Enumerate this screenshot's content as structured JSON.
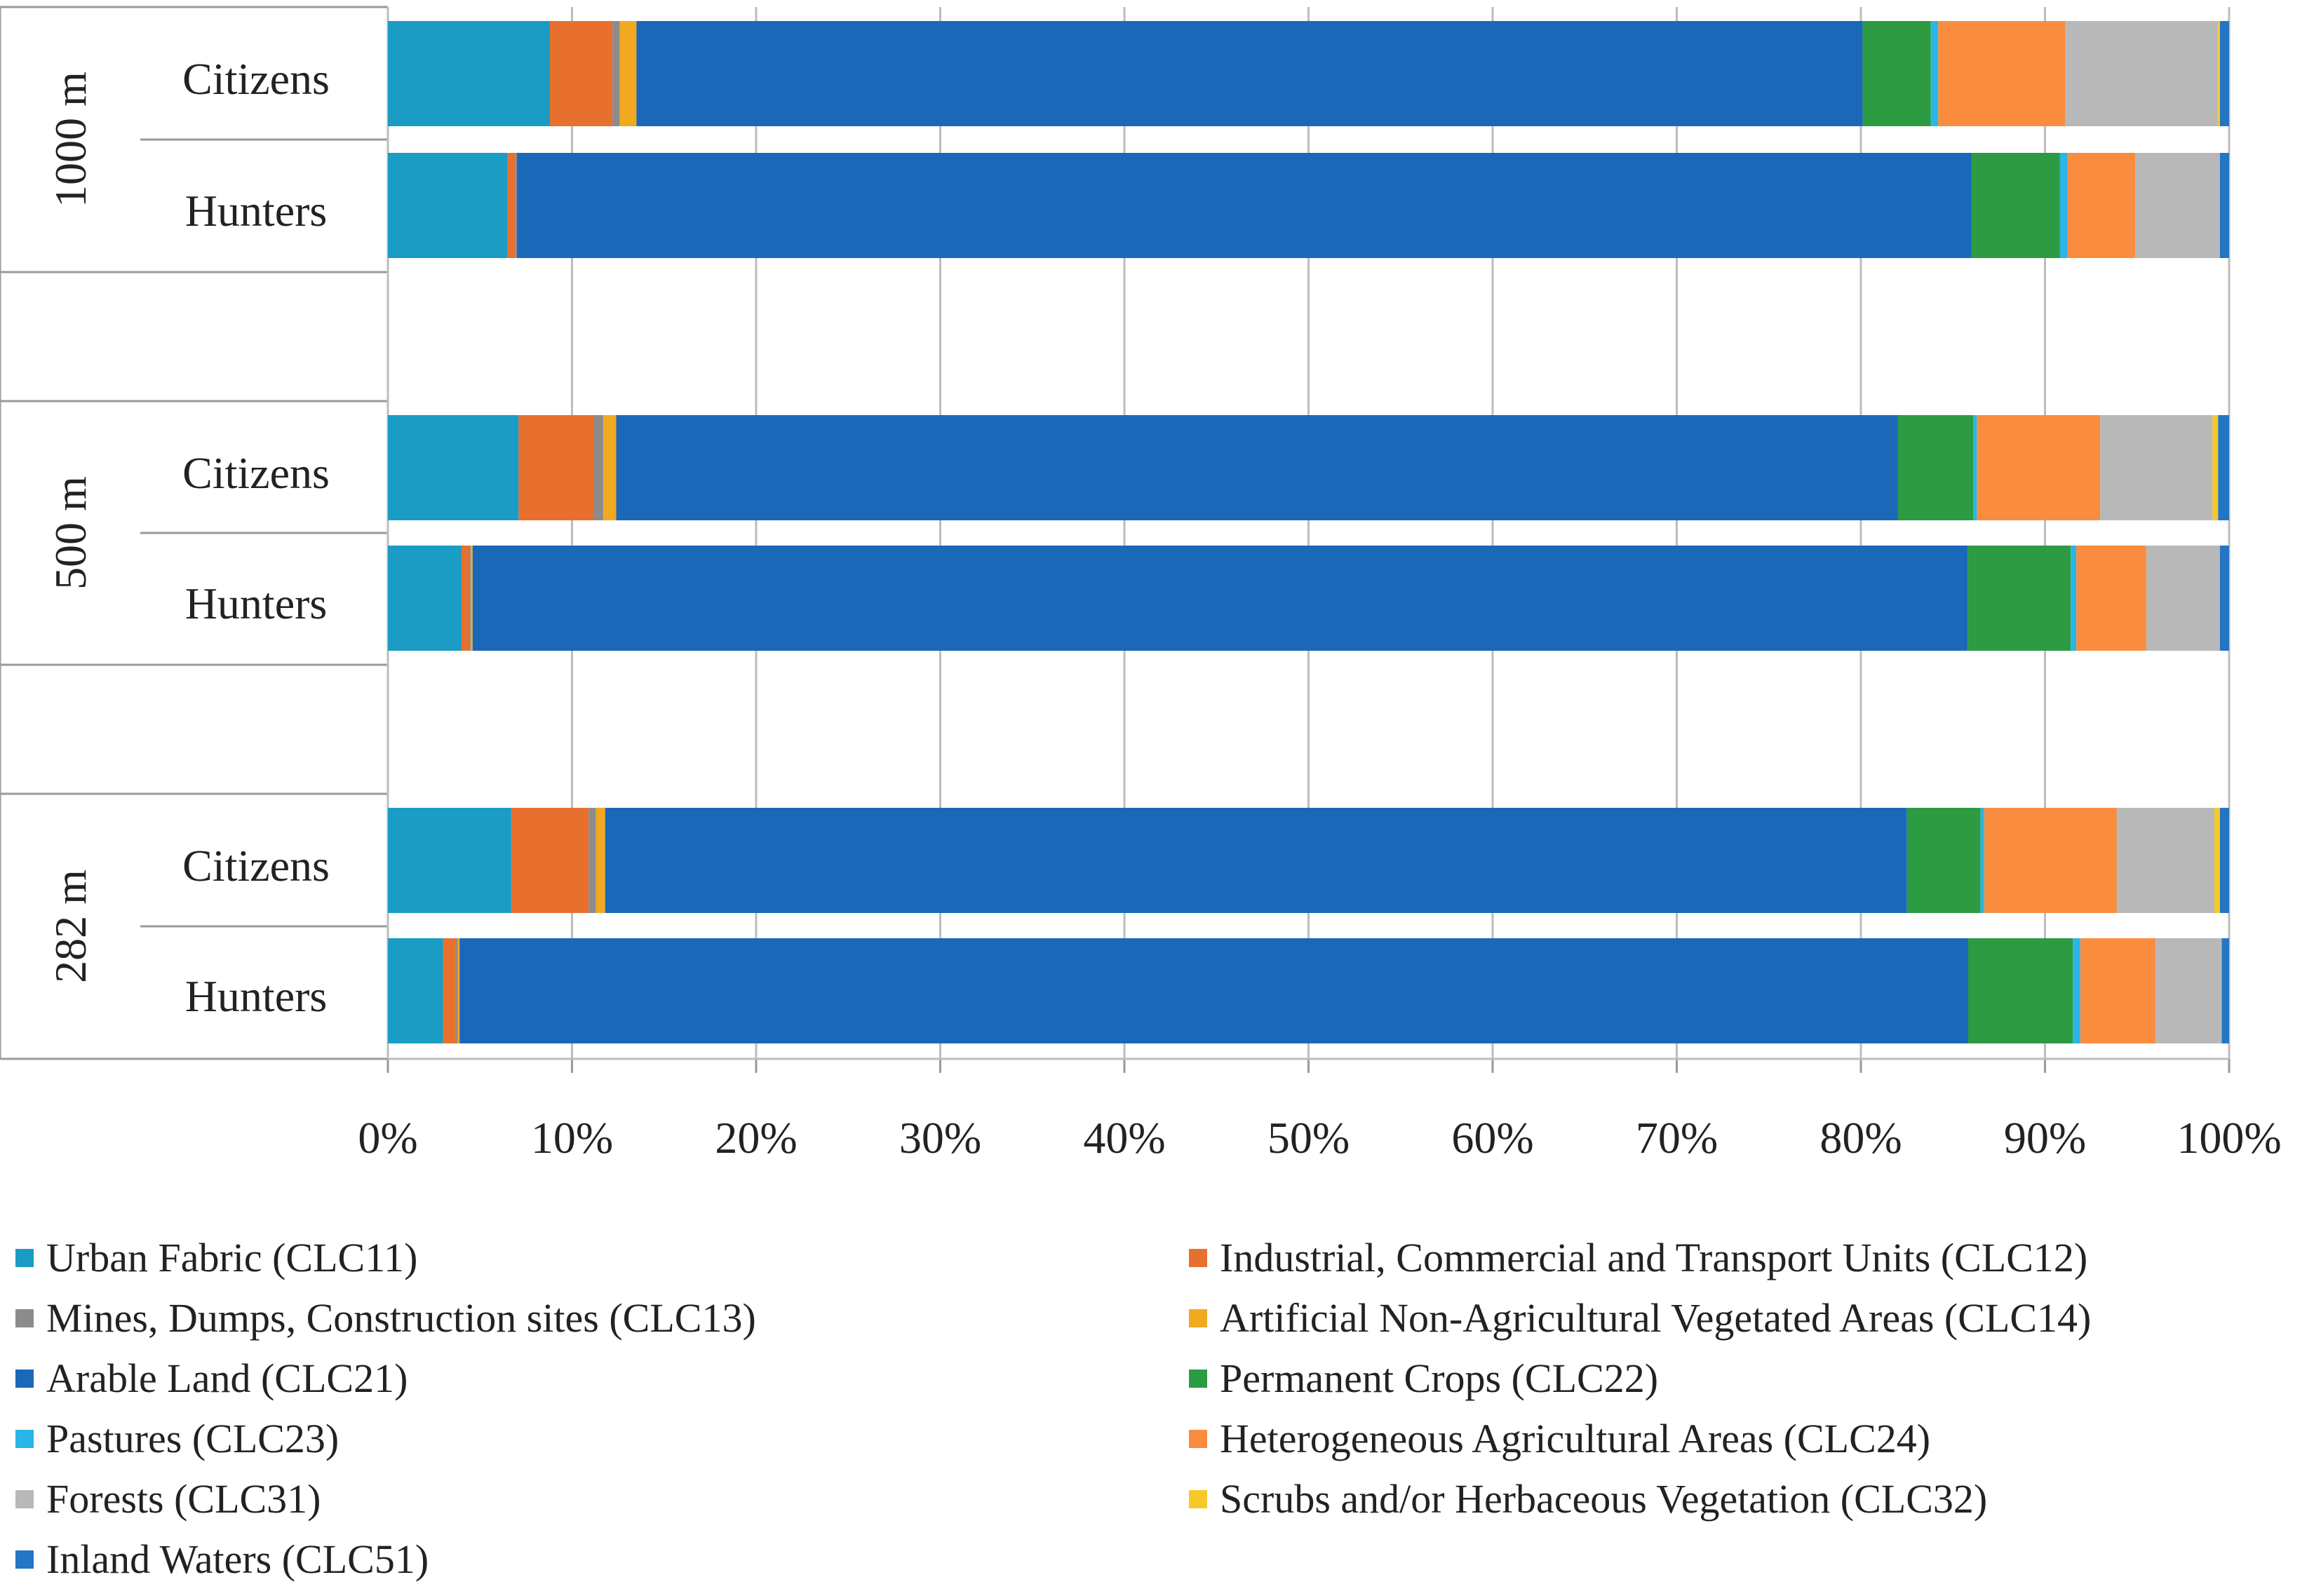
{
  "chart_data": {
    "type": "bar",
    "orientation": "horizontal",
    "stacked": "percent",
    "title": "",
    "xlabel": "",
    "ylabel": "",
    "xlim": [
      0,
      100
    ],
    "x_ticks": [
      "0%",
      "10%",
      "20%",
      "30%",
      "40%",
      "50%",
      "60%",
      "70%",
      "80%",
      "90%",
      "100%"
    ],
    "grid": true,
    "legend_position": "bottom",
    "groups": [
      {
        "label": "1000 m",
        "rows": [
          "Citizens",
          "Hunters"
        ]
      },
      {
        "label": "500 m",
        "rows": [
          "Citizens",
          "Hunters"
        ]
      },
      {
        "label": "282 m",
        "rows": [
          "Citizens",
          "Hunters"
        ]
      }
    ],
    "categories": [
      "1000 m Citizens",
      "1000 m Hunters",
      "500 m Citizens",
      "500 m Hunters",
      "282 m Citizens",
      "282 m Hunters"
    ],
    "series": [
      {
        "name": "Urban Fabric (CLC11)",
        "color": "#1a9cc4",
        "values": [
          8.8,
          6.5,
          7.1,
          4.0,
          6.7,
          3.0
        ]
      },
      {
        "name": "Industrial, Commercial and Transport Units (CLC12)",
        "color": "#e8702e",
        "values": [
          3.4,
          0.4,
          4.1,
          0.4,
          4.2,
          0.7
        ]
      },
      {
        "name": "Mines, Dumps, Construction sites (CLC13)",
        "color": "#8c8c8c",
        "values": [
          0.4,
          0.1,
          0.5,
          0.1,
          0.4,
          0.1
        ]
      },
      {
        "name": "Artificial Non-Agricultural Vegetated Areas (CLC14)",
        "color": "#f2a81f",
        "values": [
          0.9,
          0.0,
          0.7,
          0.1,
          0.5,
          0.1
        ]
      },
      {
        "name": "Arable Land (CLC21)",
        "color": "#1b68b8",
        "values": [
          66.6,
          79.0,
          69.6,
          81.2,
          70.7,
          82.1
        ]
      },
      {
        "name": "Permanent Crops (CLC22)",
        "color": "#2c9b42",
        "values": [
          3.7,
          4.8,
          4.1,
          5.6,
          4.0,
          5.7
        ]
      },
      {
        "name": "Pastures (CLC23)",
        "color": "#29b5e8",
        "values": [
          0.4,
          0.4,
          0.2,
          0.3,
          0.2,
          0.4
        ]
      },
      {
        "name": "Heterogeneous Agricultural Areas (CLC24)",
        "color": "#f98c3e",
        "values": [
          6.9,
          3.7,
          6.7,
          3.8,
          7.2,
          4.1
        ]
      },
      {
        "name": "Forests (CLC31)",
        "color": "#b8b8b8",
        "values": [
          8.3,
          4.6,
          6.1,
          4.0,
          5.3,
          3.6
        ]
      },
      {
        "name": "Scrubs and/or Herbaceous Vegetation (CLC32)",
        "color": "#f7c928",
        "values": [
          0.1,
          0.0,
          0.3,
          0.0,
          0.3,
          0.0
        ]
      },
      {
        "name": "Inland Waters (CLC51)",
        "color": "#2475c4",
        "values": [
          0.5,
          0.5,
          0.6,
          0.5,
          0.5,
          0.4
        ]
      }
    ]
  }
}
